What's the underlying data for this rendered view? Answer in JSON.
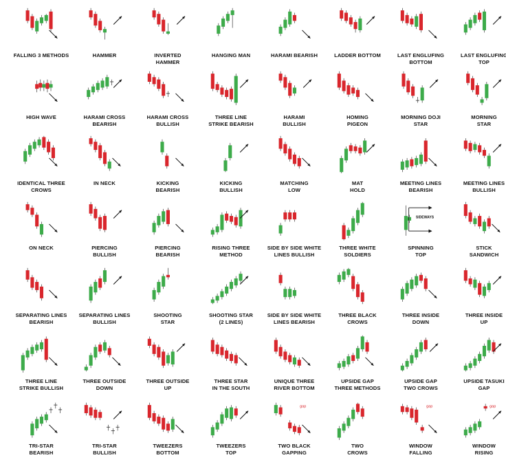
{
  "colors": {
    "bull": "#3dab4a",
    "bear": "#d9262c",
    "wick": "#333333",
    "arrow": "#111111",
    "annotation": "#d9262c"
  },
  "patterns": [
    {
      "id": "falling-3-methods",
      "line1": "FALLING 3 METHODS",
      "line2": "",
      "trend": "down"
    },
    {
      "id": "hammer",
      "line1": "HAMMER",
      "line2": "",
      "trend": "up"
    },
    {
      "id": "inverted-hammer",
      "line1": "INVERTED",
      "line2": "HAMMER",
      "trend": "up"
    },
    {
      "id": "hanging-man",
      "line1": "HANGING MAN",
      "line2": "",
      "trend": "none"
    },
    {
      "id": "harami-bearish-1",
      "line1": "HARAMI BEARISH",
      "line2": "",
      "trend": "down"
    },
    {
      "id": "ladder-bottom",
      "line1": "LADDER BOTTOM",
      "line2": "",
      "trend": "up"
    },
    {
      "id": "last-engulfing-bottom",
      "line1": "LAST ENGLUFING",
      "line2": "BOTTOM",
      "trend": "down"
    },
    {
      "id": "last-engulfing-top",
      "line1": "LAST ENGLUFING",
      "line2": "TOP",
      "trend": "up"
    },
    {
      "id": "high-wave",
      "line1": "HIGH WAVE",
      "line2": "",
      "trend": "down"
    },
    {
      "id": "harami-cross-bearish",
      "line1": "HARAMI CROSS",
      "line2": "BEARISH",
      "trend": "up"
    },
    {
      "id": "harami-cross-bullish",
      "line1": "HARAMI CROSS",
      "line2": "BULLISH",
      "trend": "down"
    },
    {
      "id": "three-line-strike-bearish",
      "line1": "THREE LINE",
      "line2": "STRIKE BEARISH",
      "trend": "up"
    },
    {
      "id": "harami-bullish",
      "line1": "HARAMI",
      "line2": "BULLISH",
      "trend": "up"
    },
    {
      "id": "homing-pigeon",
      "line1": "HOMING",
      "line2": "PIGEON",
      "trend": "down"
    },
    {
      "id": "morning-doji-star",
      "line1": "MORNING DOJI",
      "line2": "STAR",
      "trend": "up"
    },
    {
      "id": "morning-star",
      "line1": "MORNING",
      "line2": "STAR",
      "trend": "up"
    },
    {
      "id": "identical-three-crows",
      "line1": "IDENTICAL THREE",
      "line2": "CROWS",
      "trend": "down"
    },
    {
      "id": "in-neck",
      "line1": "IN NECK",
      "line2": "",
      "trend": "down"
    },
    {
      "id": "kicking-bearish",
      "line1": "KICKING",
      "line2": "BEARISH",
      "trend": "down"
    },
    {
      "id": "kicking-bullish",
      "line1": "KICKING",
      "line2": "BULLISH",
      "trend": "up"
    },
    {
      "id": "matching-low",
      "line1": "MATCHING",
      "line2": "LOW",
      "trend": "down"
    },
    {
      "id": "mat-hold",
      "line1": "MAT",
      "line2": "HOLD",
      "trend": "up"
    },
    {
      "id": "meeting-lines-bearish",
      "line1": "MEETING LINES",
      "line2": "BEARISH",
      "trend": "down"
    },
    {
      "id": "meeting-lines-bullish",
      "line1": "MEETING LINES",
      "line2": "BULLISH",
      "trend": "up"
    },
    {
      "id": "on-neck",
      "line1": "ON NECK",
      "line2": "",
      "trend": "down"
    },
    {
      "id": "piercing-bullish",
      "line1": "PIERCING",
      "line2": "BULLISH",
      "trend": "up"
    },
    {
      "id": "piercing-bearish",
      "line1": "PIERCING",
      "line2": "BEARISH",
      "trend": "down"
    },
    {
      "id": "rising-three-method",
      "line1": "RISING THREE",
      "line2": "METHOD",
      "trend": "up"
    },
    {
      "id": "side-by-side-white-bullish",
      "line1": "SIDE BY SIDE WHITE",
      "line2": "LINES BULLISH",
      "trend": "none"
    },
    {
      "id": "three-white-soldiers",
      "line1": "THREE WHITE",
      "line2": "SOLDIERS",
      "trend": "none"
    },
    {
      "id": "spinning-top",
      "line1": "SPINNING",
      "line2": "TOP",
      "trend": "sideways",
      "annotation": "SIDEWAYS"
    },
    {
      "id": "stick-sandwich",
      "line1": "STICK",
      "line2": "SANDWICH",
      "trend": "down"
    },
    {
      "id": "separating-lines-bearish",
      "line1": "SEPARATING LINES",
      "line2": "BEARISH",
      "trend": "down"
    },
    {
      "id": "separating-lines-bullish",
      "line1": "SEPARATING LINES",
      "line2": "BULLISH",
      "trend": "up"
    },
    {
      "id": "shooting-star",
      "line1": "SHOOTING",
      "line2": "STAR",
      "trend": "none"
    },
    {
      "id": "shooting-star-2-lines",
      "line1": "SHOOTING STAR",
      "line2": "(2 LINES)",
      "trend": "up"
    },
    {
      "id": "side-by-side-white-bearish",
      "line1": "SIDE BY SIDE WHITE",
      "line2": "LINES BEARISH",
      "trend": "none"
    },
    {
      "id": "three-black-crows",
      "line1": "THREE BLACK",
      "line2": "CROWS",
      "trend": "none"
    },
    {
      "id": "three-inside-down",
      "line1": "THREE INSIDE",
      "line2": "DOWN",
      "trend": "down"
    },
    {
      "id": "three-inside-up",
      "line1": "THREE INSIDE",
      "line2": "UP",
      "trend": "up"
    },
    {
      "id": "three-line-strike-bullish",
      "line1": "THREE LINE",
      "line2": "STRIKE BULLISH",
      "trend": "down"
    },
    {
      "id": "three-outside-down",
      "line1": "THREE OUTSIDE",
      "line2": "DOWN",
      "trend": "down"
    },
    {
      "id": "three-outside-up",
      "line1": "THREE OUTSIDE",
      "line2": "UP",
      "trend": "up"
    },
    {
      "id": "three-star-south",
      "line1": "THREE STAR",
      "line2": "IN THE SOUTH",
      "trend": "down"
    },
    {
      "id": "unique-three-river-bottom",
      "line1": "UNIQUE THREE",
      "line2": "RIVER BOTTOM",
      "trend": "down"
    },
    {
      "id": "upside-gap-three-methods",
      "line1": "UPSIDE GAP",
      "line2": "THREE METHODS",
      "trend": "down"
    },
    {
      "id": "upside-gap-two-crows",
      "line1": "UPSIDE GAP",
      "line2": "TWO CROWS",
      "trend": "up"
    },
    {
      "id": "upside-tasuki-gap",
      "line1": "UPSIDE TASUKI",
      "line2": "GAP",
      "trend": "up"
    },
    {
      "id": "tri-star-bearish",
      "line1": "TRI-STAR",
      "line2": "BEARISH",
      "trend": "down"
    },
    {
      "id": "tri-star-bullish",
      "line1": "TRI-STAR",
      "line2": "BULLISH",
      "trend": "up"
    },
    {
      "id": "tweezers-bottom",
      "line1": "TWEEZERS",
      "line2": "BOTTOM",
      "trend": "down"
    },
    {
      "id": "tweezers-top",
      "line1": "TWEEZERS",
      "line2": "TOP",
      "trend": "up"
    },
    {
      "id": "two-black-gapping",
      "line1": "TWO BLACK",
      "line2": "GAPPING",
      "trend": "down",
      "annotation": "gap"
    },
    {
      "id": "two-crows",
      "line1": "TWO",
      "line2": "CROWS",
      "trend": "none"
    },
    {
      "id": "window-falling",
      "line1": "WINDOW",
      "line2": "FALLING",
      "trend": "down",
      "annotation": "gap"
    },
    {
      "id": "window-rising",
      "line1": "WINDOW",
      "line2": "RISING",
      "trend": "up",
      "annotation": "gap"
    }
  ]
}
